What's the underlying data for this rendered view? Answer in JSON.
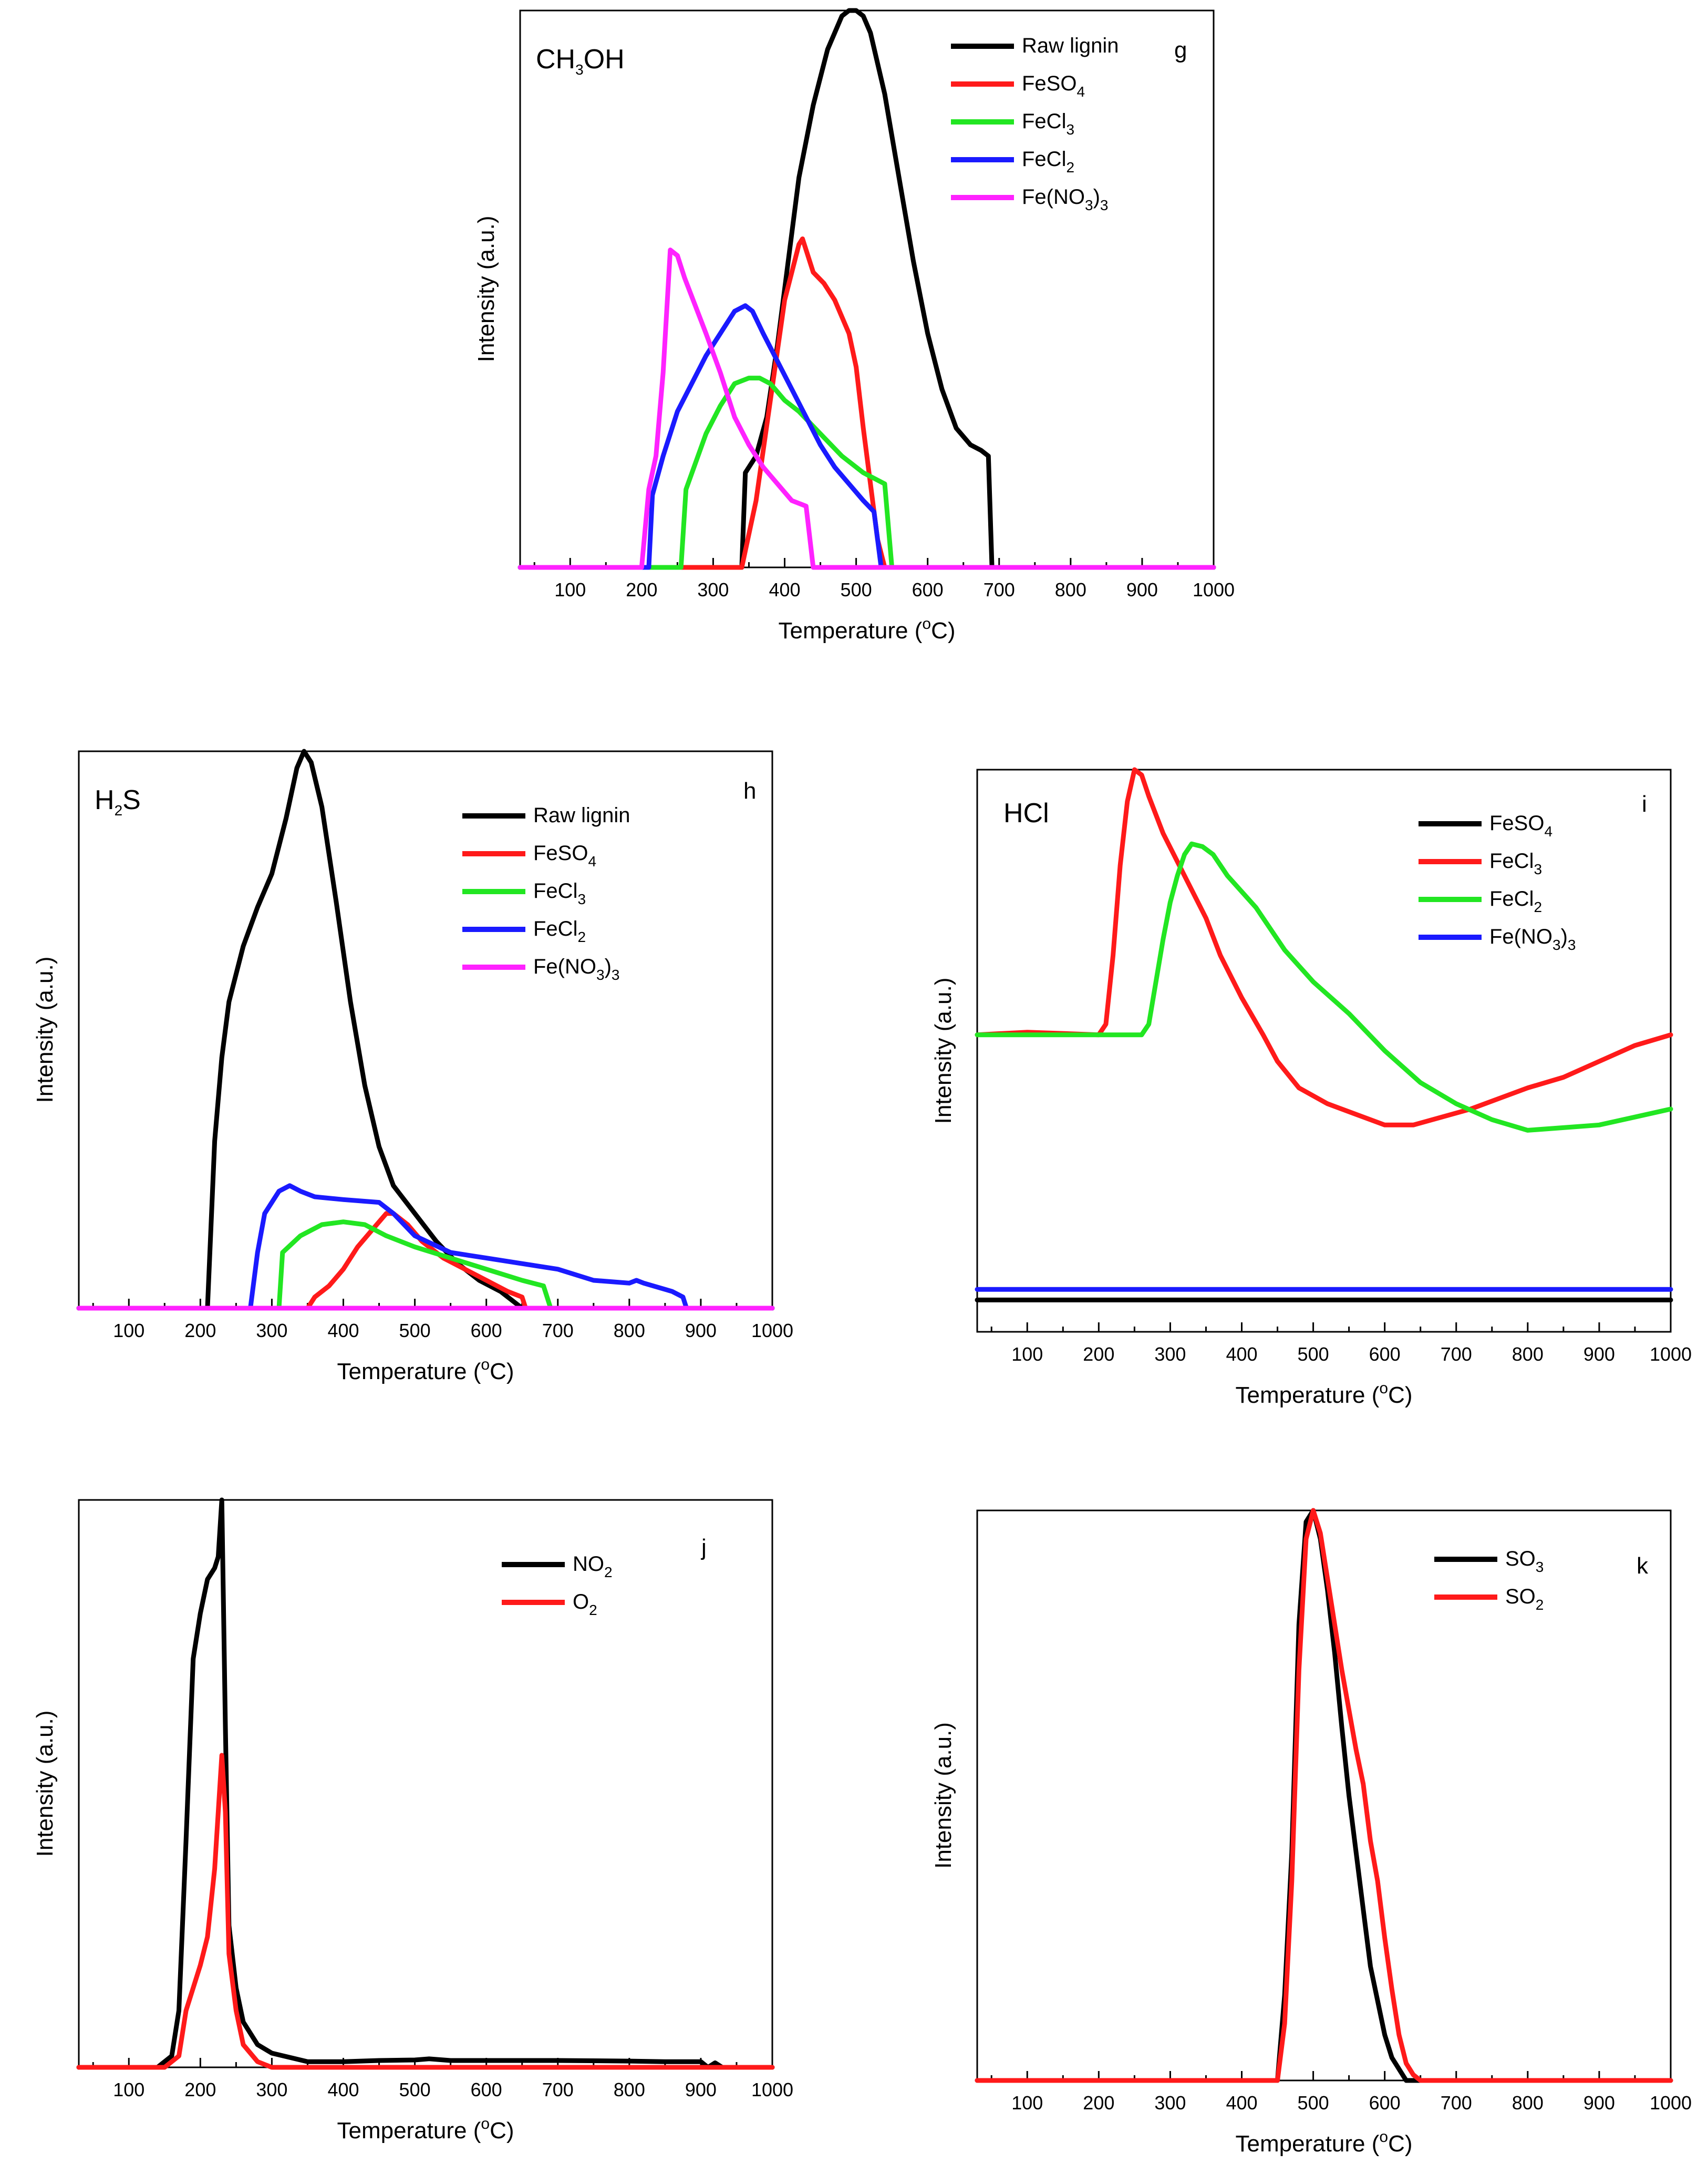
{
  "figure": {
    "xlabel_text": "Temperature (",
    "xlabel_unit": "C)",
    "degree": "o",
    "ylabel": "Intensity (a.u.)"
  },
  "colors": {
    "black": "#000000",
    "red": "#ff1a1a",
    "green": "#22e622",
    "blue": "#1a1aff",
    "magenta": "#ff22ff"
  },
  "chart_data": [
    {
      "id": "g",
      "type": "line",
      "panel_label": "g",
      "title": {
        "main": "CH",
        "sub": "3",
        "tail": "OH"
      },
      "xlim": [
        30,
        1000
      ],
      "ylim": [
        0,
        1.0
      ],
      "xticks": [
        100,
        200,
        300,
        400,
        500,
        600,
        700,
        800,
        900,
        1000
      ],
      "xlabel": "Temperature (°C)",
      "ylabel": "Intensity (a.u.)",
      "series": [
        {
          "name": "Raw lignin",
          "label_main": "Raw lignin",
          "label_sub": "",
          "label_tail": "",
          "color": "black",
          "x": [
            30,
            340,
            345,
            360,
            375,
            390,
            405,
            420,
            440,
            460,
            480,
            490,
            500,
            510,
            520,
            540,
            560,
            580,
            600,
            620,
            640,
            660,
            675,
            685,
            690,
            1000
          ],
          "y": [
            0,
            0,
            0.17,
            0.2,
            0.27,
            0.4,
            0.55,
            0.7,
            0.83,
            0.93,
            0.99,
            1.0,
            1.0,
            0.99,
            0.96,
            0.85,
            0.7,
            0.55,
            0.42,
            0.32,
            0.25,
            0.22,
            0.21,
            0.2,
            0,
            0
          ]
        },
        {
          "name": "FeSO4",
          "label_main": "FeSO",
          "label_sub": "4",
          "label_tail": "",
          "color": "red",
          "x": [
            30,
            340,
            360,
            380,
            400,
            410,
            420,
            425,
            430,
            440,
            455,
            470,
            490,
            500,
            510,
            520,
            530,
            540,
            1000
          ],
          "y": [
            0,
            0,
            0.12,
            0.3,
            0.48,
            0.53,
            0.58,
            0.59,
            0.57,
            0.53,
            0.51,
            0.48,
            0.42,
            0.36,
            0.25,
            0.15,
            0.05,
            0,
            0
          ]
        },
        {
          "name": "FeCl3",
          "label_main": "FeCl",
          "label_sub": "3",
          "label_tail": "",
          "color": "green",
          "x": [
            30,
            255,
            262,
            290,
            310,
            330,
            350,
            365,
            380,
            400,
            420,
            450,
            480,
            510,
            540,
            550,
            1000
          ],
          "y": [
            0,
            0,
            0.14,
            0.24,
            0.29,
            0.33,
            0.34,
            0.34,
            0.33,
            0.3,
            0.28,
            0.24,
            0.2,
            0.17,
            0.15,
            0,
            0
          ]
        },
        {
          "name": "FeCl2",
          "label_main": "FeCl",
          "label_sub": "2",
          "label_tail": "",
          "color": "blue",
          "x": [
            30,
            210,
            215,
            230,
            250,
            270,
            290,
            310,
            330,
            345,
            355,
            370,
            390,
            410,
            430,
            450,
            470,
            490,
            510,
            525,
            535,
            1000
          ],
          "y": [
            0,
            0,
            0.13,
            0.2,
            0.28,
            0.33,
            0.38,
            0.42,
            0.46,
            0.47,
            0.46,
            0.42,
            0.37,
            0.32,
            0.27,
            0.22,
            0.18,
            0.15,
            0.12,
            0.1,
            0,
            0
          ]
        },
        {
          "name": "Fe(NO3)3",
          "label_main": "Fe(NO",
          "label_sub": "3",
          "label_tail": ")",
          "label_sub2": "3",
          "color": "magenta",
          "x": [
            30,
            200,
            210,
            220,
            230,
            240,
            250,
            260,
            275,
            290,
            310,
            330,
            350,
            370,
            390,
            410,
            430,
            440,
            1000
          ],
          "y": [
            0,
            0,
            0.14,
            0.2,
            0.35,
            0.57,
            0.56,
            0.52,
            0.47,
            0.42,
            0.35,
            0.27,
            0.22,
            0.18,
            0.15,
            0.12,
            0.11,
            0,
            0
          ]
        }
      ]
    },
    {
      "id": "h",
      "type": "line",
      "panel_label": "h",
      "title": {
        "main": "H",
        "sub": "2",
        "tail": "S"
      },
      "xlim": [
        30,
        1000
      ],
      "ylim": [
        0,
        1.0
      ],
      "xticks": [
        100,
        200,
        300,
        400,
        500,
        600,
        700,
        800,
        900,
        1000
      ],
      "xlabel": "Temperature (°C)",
      "ylabel": "Intensity (a.u.)",
      "series": [
        {
          "name": "Raw lignin",
          "label_main": "Raw lignin",
          "label_sub": "",
          "label_tail": "",
          "color": "black",
          "x": [
            30,
            210,
            220,
            230,
            240,
            260,
            280,
            300,
            320,
            335,
            345,
            355,
            370,
            390,
            410,
            430,
            450,
            470,
            500,
            530,
            560,
            590,
            620,
            650,
            1000
          ],
          "y": [
            0,
            0,
            0.3,
            0.45,
            0.55,
            0.65,
            0.72,
            0.78,
            0.88,
            0.97,
            1.0,
            0.98,
            0.9,
            0.73,
            0.55,
            0.4,
            0.29,
            0.22,
            0.17,
            0.12,
            0.08,
            0.05,
            0.03,
            0,
            0
          ]
        },
        {
          "name": "FeSO4",
          "label_main": "FeSO",
          "label_sub": "4",
          "label_tail": "",
          "color": "red",
          "x": [
            30,
            350,
            360,
            380,
            400,
            420,
            440,
            460,
            470,
            490,
            510,
            540,
            570,
            600,
            630,
            650,
            655,
            1000
          ],
          "y": [
            0,
            0,
            0.02,
            0.04,
            0.07,
            0.11,
            0.14,
            0.17,
            0.17,
            0.15,
            0.12,
            0.09,
            0.07,
            0.05,
            0.03,
            0.02,
            0,
            0
          ]
        },
        {
          "name": "FeCl3",
          "label_main": "FeCl",
          "label_sub": "3",
          "label_tail": "",
          "color": "green",
          "x": [
            30,
            310,
            315,
            340,
            370,
            400,
            430,
            460,
            500,
            550,
            600,
            650,
            680,
            690,
            1000
          ],
          "y": [
            0,
            0,
            0.1,
            0.13,
            0.15,
            0.155,
            0.15,
            0.13,
            0.11,
            0.09,
            0.07,
            0.05,
            0.04,
            0,
            0
          ]
        },
        {
          "name": "FeCl2",
          "label_main": "FeCl",
          "label_sub": "2",
          "label_tail": "",
          "color": "blue",
          "x": [
            30,
            270,
            280,
            290,
            310,
            325,
            340,
            360,
            400,
            450,
            470,
            500,
            550,
            600,
            650,
            700,
            750,
            800,
            810,
            820,
            860,
            875,
            880,
            1000
          ],
          "y": [
            0,
            0,
            0.1,
            0.17,
            0.21,
            0.22,
            0.21,
            0.2,
            0.195,
            0.19,
            0.17,
            0.13,
            0.1,
            0.09,
            0.08,
            0.07,
            0.05,
            0.045,
            0.05,
            0.045,
            0.03,
            0.02,
            0,
            0
          ]
        },
        {
          "name": "Fe(NO3)3",
          "label_main": "Fe(NO",
          "label_sub": "3",
          "label_tail": ")",
          "label_sub2": "3",
          "color": "magenta",
          "x": [
            30,
            1000
          ],
          "y": [
            0,
            0
          ]
        }
      ]
    },
    {
      "id": "i",
      "type": "line",
      "panel_label": "i",
      "title": {
        "main": "HCl",
        "sub": "",
        "tail": ""
      },
      "xlim": [
        30,
        1000
      ],
      "ylim": [
        -0.06,
        1.0
      ],
      "xticks": [
        100,
        200,
        300,
        400,
        500,
        600,
        700,
        800,
        900,
        1000
      ],
      "xlabel": "Temperature (°C)",
      "ylabel": "Intensity (a.u.)",
      "series": [
        {
          "name": "FeSO4",
          "label_main": "FeSO",
          "label_sub": "4",
          "label_tail": "",
          "color": "black",
          "x": [
            30,
            1000
          ],
          "y": [
            0,
            0
          ]
        },
        {
          "name": "FeCl3",
          "label_main": "FeCl",
          "label_sub": "3",
          "label_tail": "",
          "color": "red",
          "x": [
            30,
            100,
            200,
            210,
            220,
            230,
            240,
            250,
            260,
            270,
            290,
            320,
            350,
            370,
            400,
            430,
            450,
            480,
            520,
            560,
            600,
            640,
            680,
            720,
            760,
            800,
            850,
            900,
            950,
            1000
          ],
          "y": [
            0.5,
            0.505,
            0.5,
            0.52,
            0.65,
            0.82,
            0.94,
            1.0,
            0.99,
            0.95,
            0.88,
            0.8,
            0.72,
            0.65,
            0.57,
            0.5,
            0.45,
            0.4,
            0.37,
            0.35,
            0.33,
            0.33,
            0.345,
            0.36,
            0.38,
            0.4,
            0.42,
            0.45,
            0.48,
            0.5
          ]
        },
        {
          "name": "FeCl2",
          "label_main": "FeCl",
          "label_sub": "2",
          "label_tail": "",
          "color": "green",
          "x": [
            30,
            100,
            200,
            260,
            270,
            280,
            290,
            300,
            310,
            320,
            330,
            345,
            360,
            380,
            420,
            460,
            500,
            550,
            600,
            650,
            700,
            750,
            800,
            850,
            900,
            950,
            1000
          ],
          "y": [
            0.5,
            0.5,
            0.5,
            0.5,
            0.52,
            0.6,
            0.68,
            0.75,
            0.8,
            0.84,
            0.86,
            0.855,
            0.84,
            0.8,
            0.74,
            0.66,
            0.6,
            0.54,
            0.47,
            0.41,
            0.37,
            0.34,
            0.32,
            0.325,
            0.33,
            0.345,
            0.36
          ]
        },
        {
          "name": "Fe(NO3)3",
          "label_main": "Fe(NO",
          "label_sub": "3",
          "label_tail": ")",
          "label_sub2": "3",
          "color": "blue",
          "x": [
            30,
            1000
          ],
          "y": [
            0.02,
            0.02
          ]
        }
      ]
    },
    {
      "id": "j",
      "type": "line",
      "panel_label": "j",
      "title": {
        "main": "",
        "sub": "",
        "tail": ""
      },
      "xlim": [
        30,
        1000
      ],
      "ylim": [
        0,
        1.0
      ],
      "xticks": [
        100,
        200,
        300,
        400,
        500,
        600,
        700,
        800,
        900,
        1000
      ],
      "xlabel": "Temperature (°C)",
      "ylabel": "Intensity (a.u.)",
      "series": [
        {
          "name": "NO2",
          "label_main": "NO",
          "label_sub": "2",
          "label_tail": "",
          "color": "black",
          "x": [
            30,
            140,
            160,
            170,
            180,
            190,
            200,
            210,
            220,
            225,
            230,
            235,
            240,
            250,
            260,
            280,
            300,
            350,
            400,
            450,
            500,
            520,
            550,
            600,
            700,
            800,
            850,
            900,
            910,
            920,
            930,
            1000
          ],
          "y": [
            0,
            0,
            0.02,
            0.1,
            0.4,
            0.72,
            0.8,
            0.86,
            0.88,
            0.9,
            1.0,
            0.6,
            0.25,
            0.14,
            0.08,
            0.04,
            0.025,
            0.01,
            0.01,
            0.012,
            0.013,
            0.015,
            0.012,
            0.012,
            0.012,
            0.011,
            0.01,
            0.01,
            0.0,
            0.008,
            0.0,
            0.0
          ]
        },
        {
          "name": "O2",
          "label_main": "O",
          "label_sub": "2",
          "label_tail": "",
          "color": "red",
          "x": [
            30,
            150,
            170,
            180,
            190,
            200,
            210,
            220,
            230,
            235,
            240,
            250,
            260,
            280,
            300,
            1000
          ],
          "y": [
            0,
            0,
            0.02,
            0.1,
            0.14,
            0.18,
            0.23,
            0.35,
            0.55,
            0.45,
            0.2,
            0.1,
            0.04,
            0.01,
            0,
            0
          ]
        }
      ]
    },
    {
      "id": "k",
      "type": "line",
      "panel_label": "k",
      "title": {
        "main": "",
        "sub": "",
        "tail": ""
      },
      "xlim": [
        30,
        1000
      ],
      "ylim": [
        0,
        1.0
      ],
      "xticks": [
        100,
        200,
        300,
        400,
        500,
        600,
        700,
        800,
        900,
        1000
      ],
      "xlabel": "Temperature (°C)",
      "ylabel": "Intensity (a.u.)",
      "series": [
        {
          "name": "SO3",
          "label_main": "SO",
          "label_sub": "3",
          "label_tail": "",
          "color": "black",
          "x": [
            30,
            450,
            460,
            470,
            480,
            490,
            500,
            510,
            520,
            530,
            540,
            550,
            560,
            570,
            580,
            590,
            600,
            610,
            620,
            630,
            640,
            1000
          ],
          "y": [
            0,
            0,
            0.15,
            0.4,
            0.8,
            0.98,
            1.0,
            0.95,
            0.86,
            0.75,
            0.62,
            0.5,
            0.4,
            0.3,
            0.2,
            0.14,
            0.08,
            0.04,
            0.02,
            0,
            0,
            0
          ]
        },
        {
          "name": "SO2",
          "label_main": "SO",
          "label_sub": "2",
          "label_tail": "",
          "color": "red",
          "x": [
            30,
            450,
            460,
            470,
            480,
            490,
            500,
            510,
            520,
            530,
            540,
            550,
            560,
            570,
            580,
            590,
            600,
            610,
            620,
            630,
            640,
            650,
            1000
          ],
          "y": [
            0,
            0,
            0.1,
            0.35,
            0.72,
            0.95,
            1.0,
            0.96,
            0.88,
            0.8,
            0.72,
            0.65,
            0.58,
            0.52,
            0.42,
            0.35,
            0.25,
            0.16,
            0.08,
            0.03,
            0.01,
            0,
            0
          ]
        }
      ]
    }
  ]
}
